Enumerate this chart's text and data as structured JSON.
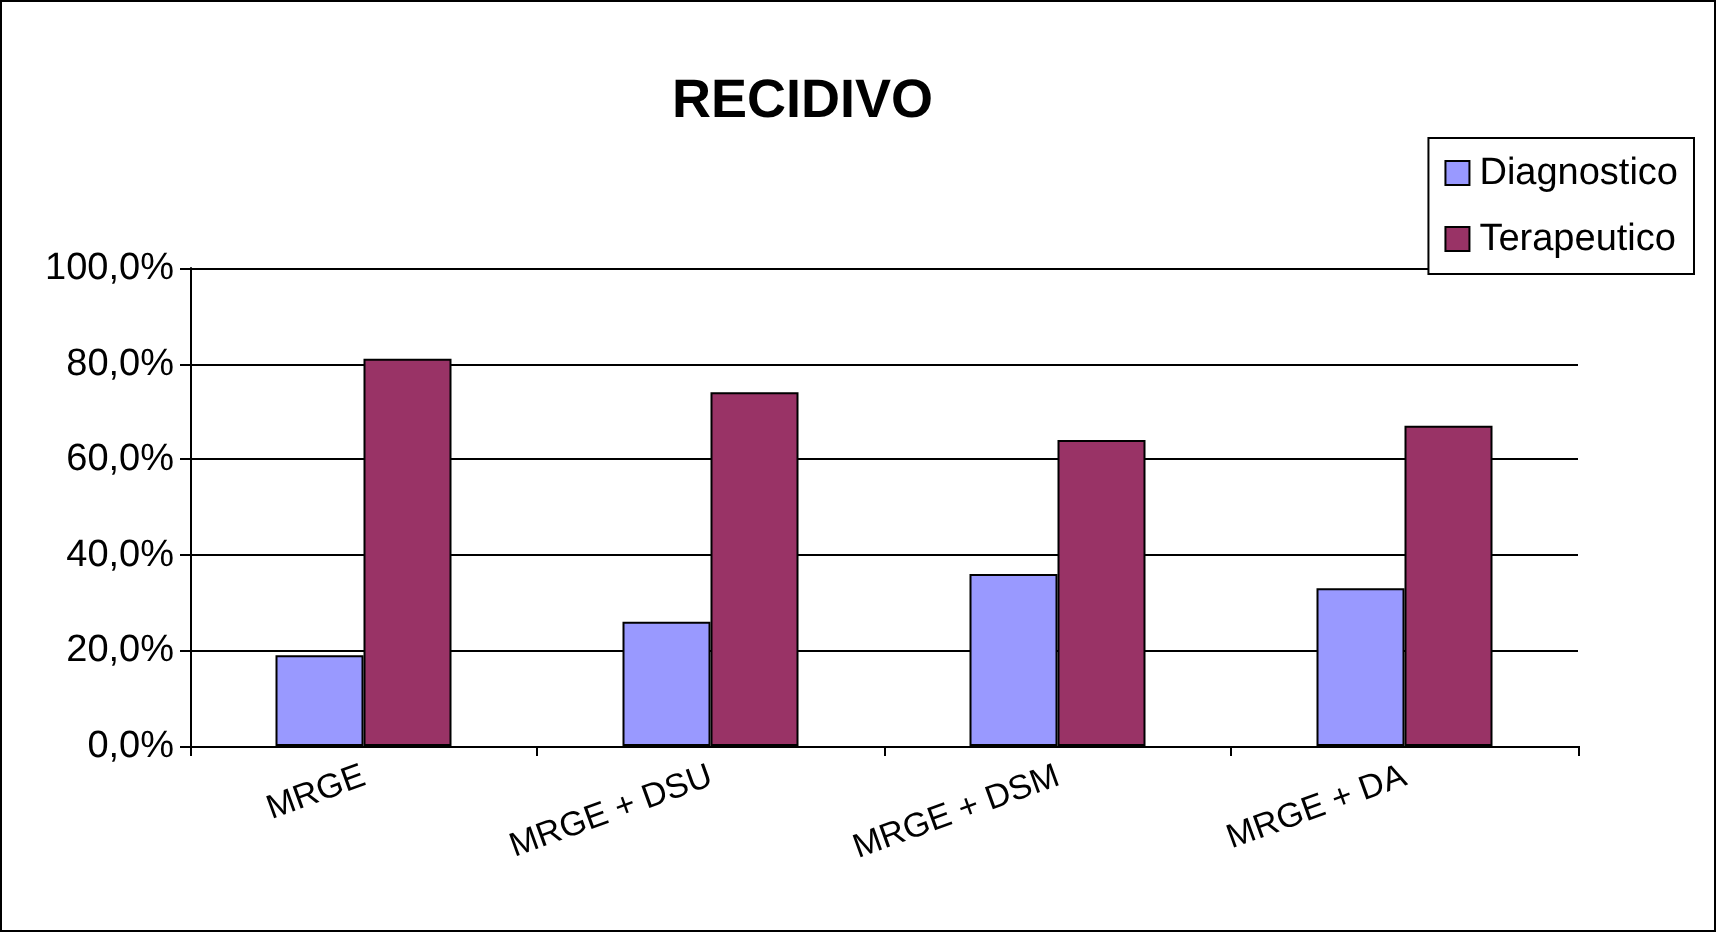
{
  "chart_data": {
    "type": "bar",
    "title": "RECIDIVO",
    "categories": [
      "MRGE",
      "MRGE + DSU",
      "MRGE + DSM",
      "MRGE + DA"
    ],
    "series": [
      {
        "name": "Diagnostico",
        "color": "#9999ff",
        "values": [
          19,
          26,
          36,
          33
        ]
      },
      {
        "name": "Terapeutico",
        "color": "#993366",
        "values": [
          81,
          74,
          64,
          67
        ]
      }
    ],
    "ylim": [
      0,
      100
    ],
    "yticks": [
      {
        "value": 0,
        "label": "0,0%"
      },
      {
        "value": 20,
        "label": "20,0%"
      },
      {
        "value": 40,
        "label": "40,0%"
      },
      {
        "value": 60,
        "label": "60,0%"
      },
      {
        "value": 80,
        "label": "80,0%"
      },
      {
        "value": 100,
        "label": "100,0%"
      }
    ],
    "grid": "y",
    "legend": "top right"
  }
}
